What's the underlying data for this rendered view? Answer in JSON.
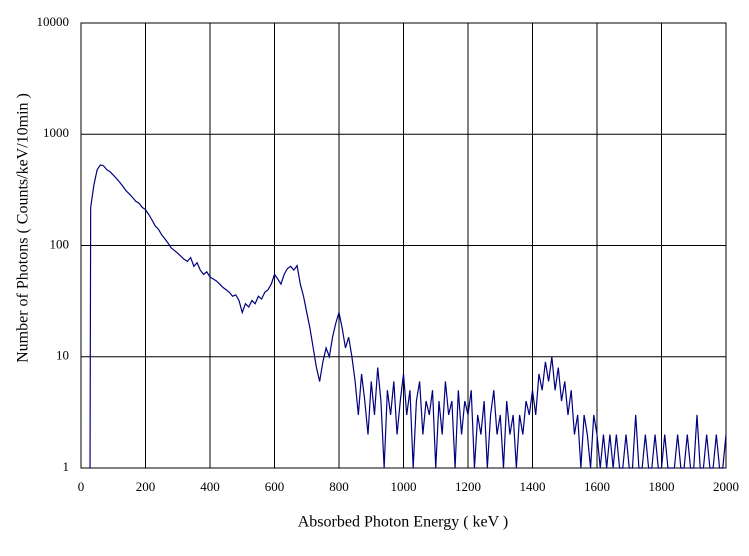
{
  "chart_data": {
    "type": "line",
    "x_label": "Absorbed Photon Energy ( keV )",
    "y_label": "Number  of Photons ( Counts/keV/10min )",
    "xlim": [
      0,
      2000
    ],
    "xticks": [
      0,
      200,
      400,
      600,
      800,
      1000,
      1200,
      1400,
      1600,
      1800,
      2000
    ],
    "ylim": [
      1,
      10000
    ],
    "yticks": [
      1,
      10,
      100,
      1000,
      10000
    ],
    "log_y": true,
    "grid": true,
    "x": [
      28,
      30,
      40,
      50,
      60,
      70,
      80,
      90,
      100,
      110,
      120,
      130,
      140,
      150,
      160,
      170,
      180,
      190,
      200,
      210,
      220,
      230,
      240,
      250,
      260,
      270,
      280,
      290,
      300,
      310,
      320,
      330,
      340,
      350,
      360,
      370,
      380,
      390,
      400,
      410,
      420,
      430,
      440,
      450,
      460,
      470,
      480,
      490,
      500,
      510,
      520,
      530,
      540,
      550,
      560,
      570,
      580,
      590,
      600,
      610,
      620,
      630,
      640,
      650,
      660,
      670,
      680,
      690,
      700,
      710,
      720,
      730,
      740,
      750,
      760,
      770,
      780,
      790,
      800,
      810,
      820,
      830,
      840,
      850,
      860,
      870,
      880,
      890,
      900,
      910,
      920,
      930,
      940,
      950,
      960,
      970,
      980,
      990,
      1000,
      1010,
      1020,
      1030,
      1040,
      1050,
      1060,
      1070,
      1080,
      1090,
      1100,
      1110,
      1120,
      1130,
      1140,
      1150,
      1160,
      1170,
      1180,
      1190,
      1200,
      1210,
      1220,
      1230,
      1240,
      1250,
      1260,
      1270,
      1280,
      1290,
      1300,
      1310,
      1320,
      1330,
      1340,
      1350,
      1360,
      1370,
      1380,
      1390,
      1400,
      1410,
      1420,
      1430,
      1440,
      1450,
      1460,
      1470,
      1480,
      1490,
      1500,
      1510,
      1520,
      1530,
      1540,
      1550,
      1560,
      1570,
      1580,
      1590,
      1600,
      1610,
      1620,
      1630,
      1640,
      1650,
      1660,
      1670,
      1680,
      1690,
      1700,
      1710,
      1720,
      1730,
      1740,
      1750,
      1760,
      1770,
      1780,
      1790,
      1800,
      1810,
      1820,
      1830,
      1840,
      1850,
      1860,
      1870,
      1880,
      1890,
      1900,
      1910,
      1920,
      1930,
      1940,
      1950,
      1960,
      1970,
      1980,
      1990,
      2000
    ],
    "series": [
      {
        "color": "#000080",
        "values": [
          1,
          220,
          350,
          480,
          530,
          520,
          480,
          460,
          430,
          400,
          370,
          340,
          310,
          290,
          270,
          250,
          240,
          220,
          210,
          190,
          170,
          150,
          140,
          125,
          115,
          105,
          95,
          90,
          85,
          80,
          75,
          72,
          78,
          65,
          70,
          60,
          55,
          58,
          52,
          50,
          48,
          45,
          42,
          40,
          38,
          35,
          36,
          32,
          25,
          30,
          28,
          32,
          30,
          35,
          33,
          38,
          40,
          45,
          55,
          50,
          45,
          55,
          62,
          65,
          60,
          66,
          45,
          35,
          25,
          18,
          12,
          8,
          6,
          9,
          12,
          10,
          15,
          20,
          25,
          18,
          12,
          15,
          10,
          6,
          3,
          7,
          4,
          2,
          6,
          3,
          8,
          4,
          1,
          5,
          3,
          6,
          2,
          4,
          7,
          3,
          5,
          1,
          4,
          6,
          2,
          4,
          3,
          5,
          1,
          4,
          2,
          6,
          3,
          4,
          1,
          5,
          2,
          4,
          3,
          5,
          1,
          3,
          2,
          4,
          1,
          3,
          5,
          2,
          3,
          1,
          4,
          2,
          3,
          1,
          3,
          2,
          4,
          3,
          5,
          3,
          7,
          5,
          9,
          6,
          10,
          5,
          8,
          4,
          6,
          3,
          5,
          2,
          3,
          1,
          3,
          2,
          1,
          3,
          2,
          1,
          2,
          1,
          2,
          1,
          2,
          1,
          1,
          2,
          1,
          1,
          3,
          1,
          1,
          2,
          1,
          1,
          2,
          1,
          1,
          2,
          1,
          1,
          1,
          2,
          1,
          1,
          2,
          1,
          1,
          3,
          1,
          1,
          2,
          1,
          1,
          2,
          1,
          1,
          2
        ]
      }
    ]
  }
}
